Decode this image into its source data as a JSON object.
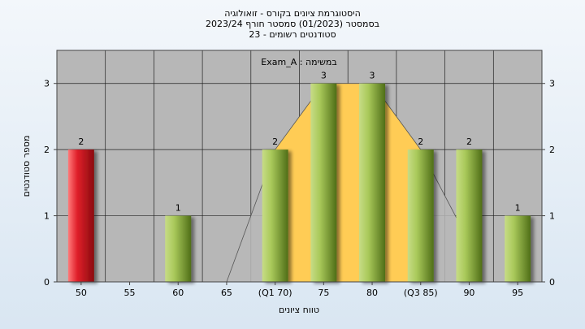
{
  "chart_data": {
    "type": "bar",
    "title": "היסטוגרמת ציונים בקורס - זואולוגיה",
    "subtitle_1": "בסמסטר (01/2023) סמסטר חורף 2023/24",
    "subtitle_2": "סטודנטים רשומים - 23",
    "legend_text": "במשימה : Exam_A",
    "xlabel": "טווח ציונים",
    "ylabel": "מספר סטודנטים",
    "categories": [
      "50",
      "55",
      "60",
      "65",
      "(Q1 70)",
      "75",
      "80",
      "(Q3 85)",
      "90",
      "95"
    ],
    "values": [
      2,
      0,
      1,
      0,
      2,
      3,
      3,
      2,
      2,
      1
    ],
    "y_ticks": [
      "0",
      "1",
      "2",
      "3"
    ],
    "ylim": [
      0,
      3.5
    ],
    "highlight_index": 0,
    "colors": {
      "highlight": "#d8121b",
      "bar": "#8fb23a",
      "iqr_band": "#ffcc55",
      "distribution": "#b8b8b8",
      "plot_bg": "#b7b7b7"
    },
    "quartile_band": {
      "from": 70,
      "to": 85
    },
    "distribution_curve": [
      [
        65,
        0
      ],
      [
        70,
        2
      ],
      [
        75,
        3
      ],
      [
        80,
        3
      ],
      [
        85,
        2
      ],
      [
        90,
        0.6
      ]
    ],
    "grid": true
  }
}
